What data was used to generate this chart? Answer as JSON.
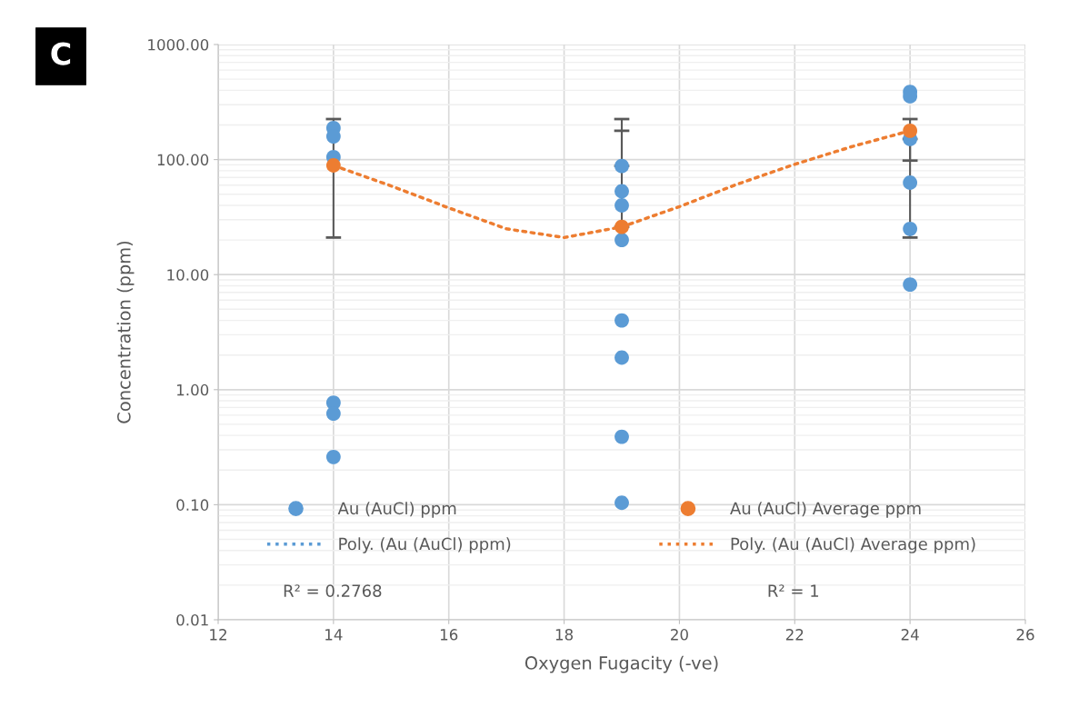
{
  "chart_data": {
    "type": "scatter",
    "xlabel": "Oxygen Fugacity (-ve)",
    "ylabel": "Concentration (ppm)",
    "annotations": [
      "C",
      "R² = 0.2768",
      "R² = 1"
    ],
    "log": "y",
    "grid": true,
    "legend": "bottom",
    "marker": "circle",
    "xlim": [
      12,
      26
    ],
    "xticks": [
      12,
      14,
      16,
      18,
      20,
      22,
      24,
      26
    ],
    "ylim": [
      0.01,
      1000
    ],
    "yticks": [
      {
        "value": 0.01,
        "label": "0.01"
      },
      {
        "value": 0.1,
        "label": "0.10"
      },
      {
        "value": 1,
        "label": "1.00"
      },
      {
        "value": 10,
        "label": "10.00"
      },
      {
        "value": 100,
        "label": "100.00"
      },
      {
        "value": 1000,
        "label": "1000.00"
      }
    ],
    "series": [
      {
        "name": "Au (AuCl) ppm",
        "color": "#5b9bd5",
        "x": [
          14,
          14,
          14,
          14,
          14,
          14,
          19,
          19,
          19,
          19,
          19,
          19,
          19,
          19,
          24,
          24,
          24,
          24,
          24,
          24
        ],
        "values": [
          188,
          159,
          105,
          0.77,
          0.62,
          0.26,
          88,
          53,
          40,
          20,
          4.0,
          1.9,
          0.39,
          0.104,
          388,
          355,
          151,
          63,
          25,
          8.2
        ],
        "errors": [
          null,
          null,
          null,
          null,
          null,
          null,
          [
            88,
            178
          ],
          null,
          null,
          null,
          null,
          null,
          null,
          null,
          null,
          null,
          [
            98,
            151
          ],
          null,
          null,
          null
        ]
      },
      {
        "name": "Au (AuCl) Average ppm",
        "color": "#ed7d31",
        "x": [
          14,
          19,
          24
        ],
        "values": [
          89,
          26,
          178
        ],
        "errors": [
          [
            21,
            225
          ],
          [
            26,
            225
          ],
          [
            21,
            225
          ]
        ]
      },
      {
        "name": "Poly. (Au (AuCl) ppm)",
        "type": "line",
        "line_style": "dotted",
        "marker": "none",
        "color": "#5b9bd5"
      },
      {
        "name": "Poly. (Au (AuCl) Average ppm)",
        "type": "line",
        "line_style": "dotted",
        "marker": "none",
        "color": "#ed7d31",
        "x": [
          14,
          15,
          16,
          17,
          18,
          19,
          20,
          21,
          22,
          23,
          24
        ],
        "values": [
          89,
          59,
          38,
          25,
          21,
          26,
          39,
          61,
          91,
          130,
          178
        ]
      }
    ]
  }
}
